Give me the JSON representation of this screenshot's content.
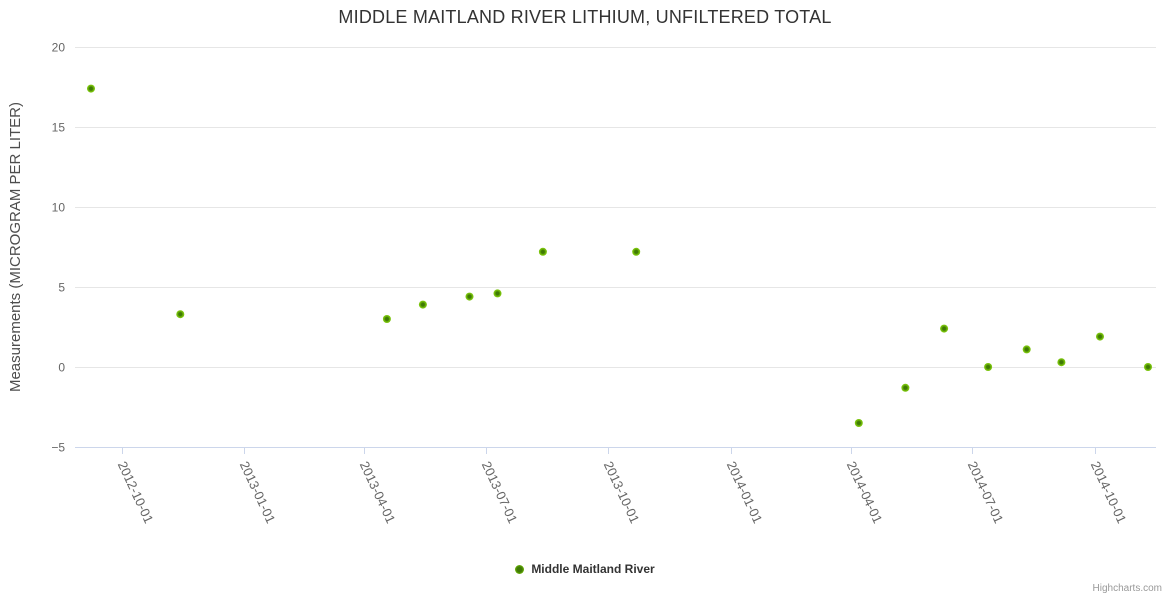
{
  "chart": {
    "title": "MIDDLE MAITLAND RIVER LITHIUM, UNFILTERED TOTAL",
    "credits": "Highcharts.com"
  },
  "legend": {
    "items": [
      {
        "label": "Middle Maitland River"
      }
    ]
  },
  "colors": {
    "background": "#ffffff",
    "point_core": "#3f7a04",
    "point_edge": "#79c30b",
    "grid": "#e6e6e6",
    "axis_line": "#ccd6eb",
    "title_text": "#333333",
    "axis_label_text": "#666666",
    "axis_title_text": "#4d4d4d",
    "legend_text": "#333333",
    "credits_text": "#999999"
  },
  "chart_data": {
    "type": "scatter",
    "title": "MIDDLE MAITLAND RIVER LITHIUM, UNFILTERED TOTAL",
    "xlabel": "",
    "ylabel": "Measurements (MICROGRAM PER LITER)",
    "ylim": [
      -5,
      20
    ],
    "xlim": [
      "2012-08-27",
      "2014-11-16"
    ],
    "grid": true,
    "legend_position": "bottom-center",
    "yticks": [
      {
        "value": 20,
        "label": "20"
      },
      {
        "value": 15,
        "label": "15"
      },
      {
        "value": 10,
        "label": "10"
      },
      {
        "value": 5,
        "label": "5"
      },
      {
        "value": 0,
        "label": "0"
      },
      {
        "value": -5,
        "label": "−5"
      }
    ],
    "xticks": [
      "2012-10-01",
      "2013-01-01",
      "2013-04-01",
      "2013-07-01",
      "2013-10-01",
      "2014-01-01",
      "2014-04-01",
      "2014-07-01",
      "2014-10-01"
    ],
    "series": [
      {
        "name": "Middle Maitland River",
        "marker": "circle",
        "points": [
          {
            "x": "2012-09-08",
            "y": 17.4
          },
          {
            "x": "2012-11-14",
            "y": 3.3
          },
          {
            "x": "2013-04-18",
            "y": 3.0
          },
          {
            "x": "2013-05-15",
            "y": 3.9
          },
          {
            "x": "2013-06-19",
            "y": 4.4
          },
          {
            "x": "2013-07-10",
            "y": 4.6
          },
          {
            "x": "2013-08-13",
            "y": 7.2
          },
          {
            "x": "2013-10-22",
            "y": 7.2
          },
          {
            "x": "2014-04-07",
            "y": -3.5
          },
          {
            "x": "2014-05-12",
            "y": -1.3
          },
          {
            "x": "2014-06-10",
            "y": 2.4
          },
          {
            "x": "2014-07-13",
            "y": 0.0
          },
          {
            "x": "2014-08-11",
            "y": 1.1
          },
          {
            "x": "2014-09-06",
            "y": 0.3
          },
          {
            "x": "2014-10-05",
            "y": 1.9
          },
          {
            "x": "2014-11-10",
            "y": 0.0
          }
        ]
      }
    ]
  }
}
